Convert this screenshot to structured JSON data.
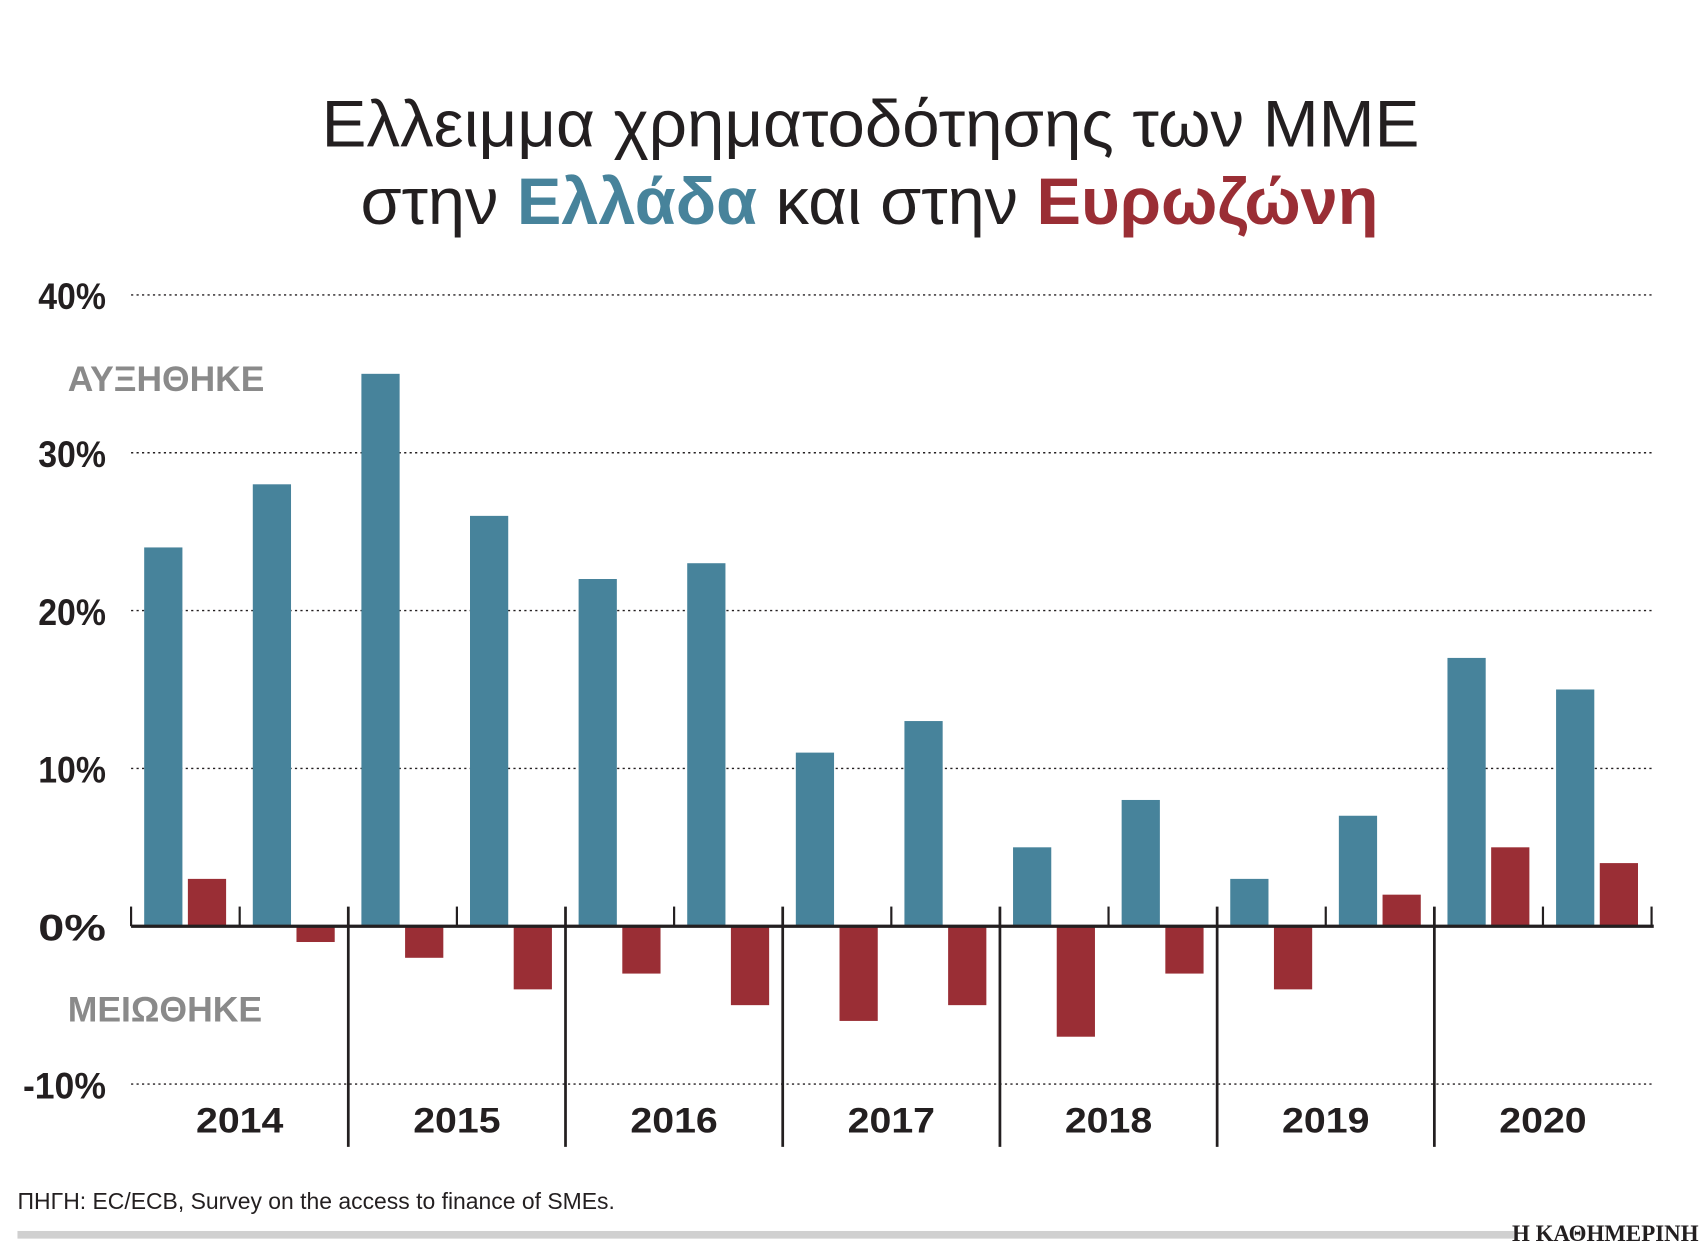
{
  "title": {
    "line1": "Ελλειμμα χρηματοδότησης των ΜΜΕ",
    "line2_a": "στην ",
    "line2_b": "Ελλάδα",
    "line2_c": " και στην ",
    "line2_d": "Ευρωζώνη"
  },
  "source": "ΠΗΓΗ: EC/ECB, Survey on the access to finance of SMEs.",
  "logo": "Η ΚΑΘΗΜΕΡΙΝΗ",
  "colors": {
    "greece": "#47839b",
    "eurozone": "#9a2e35",
    "note": "#8a8a8a",
    "text": "#231f20"
  },
  "chart_data": {
    "type": "bar",
    "title": "Ελλειμμα χρηματοδότησης των ΜΜΕ στην Ελλάδα και στην Ευρωζώνη",
    "years": [
      "2014",
      "2015",
      "2016",
      "2017",
      "2018",
      "2019",
      "2020"
    ],
    "periods_per_year": 2,
    "series": [
      {
        "name": "Ελλάδα",
        "color": "#47839b",
        "values": [
          24,
          28,
          35,
          26,
          22,
          23,
          11,
          13,
          5,
          8,
          3,
          7,
          17,
          15
        ]
      },
      {
        "name": "Ευρωζώνη",
        "color": "#9a2e35",
        "values": [
          3,
          -1,
          -2,
          -4,
          -3,
          -5,
          -6,
          -5,
          -7,
          -3,
          -4,
          2,
          5,
          4
        ]
      }
    ],
    "y_ticks": [
      "40%",
      "30%",
      "20%",
      "10%",
      "0%",
      "-10%"
    ],
    "y_tick_values": [
      40,
      30,
      20,
      10,
      0,
      -10
    ],
    "ylim": [
      -10,
      40
    ],
    "unit": "%",
    "grid": "dotted horizontal",
    "annotations": {
      "up": "ΑΥΞΗΘΗΚΕ",
      "down": "ΜΕΙΩΘΗΚΕ"
    }
  }
}
